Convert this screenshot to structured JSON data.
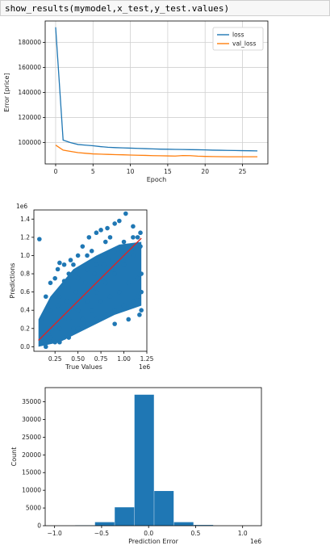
{
  "code": {
    "text": "show_results(mymodel,x_test,y_test.values)"
  },
  "chart_data": [
    {
      "type": "line",
      "xlabel": "Epoch",
      "ylabel": "Error [price]",
      "xlim": [
        -1.4,
        28.4
      ],
      "ylim": [
        83000,
        197000
      ],
      "xticks": [
        0,
        5,
        10,
        15,
        20,
        25
      ],
      "yticks": [
        100000,
        120000,
        140000,
        160000,
        180000
      ],
      "grid": true,
      "legend_position": "top-right",
      "x": [
        0,
        1,
        2,
        3,
        4,
        5,
        6,
        7,
        8,
        9,
        10,
        11,
        12,
        13,
        14,
        15,
        16,
        17,
        18,
        19,
        20,
        21,
        22,
        23,
        24,
        25,
        26,
        27
      ],
      "series": [
        {
          "name": "loss",
          "color": "#1f77b4",
          "values": [
            192000,
            102000,
            100000,
            98500,
            98000,
            97500,
            96800,
            96300,
            96000,
            95800,
            95600,
            95400,
            95200,
            95000,
            94800,
            94700,
            94600,
            94500,
            94400,
            94300,
            94200,
            94000,
            93900,
            93800,
            93700,
            93600,
            93500,
            93400
          ]
        },
        {
          "name": "val_loss",
          "color": "#ff7f0e",
          "values": [
            98000,
            94000,
            93000,
            92000,
            91500,
            91000,
            90800,
            90600,
            90400,
            90300,
            90100,
            89900,
            89800,
            89600,
            89500,
            89400,
            89300,
            89700,
            89600,
            89200,
            89000,
            88900,
            88800,
            88700,
            88700,
            88700,
            88700,
            88700
          ]
        }
      ]
    },
    {
      "type": "scatter",
      "xlabel": "True Values",
      "ylabel": "Predictions",
      "x_offset_label": "1e6",
      "y_offset_label": "1e6",
      "xlim": [
        0.02,
        1.25
      ],
      "ylim": [
        -0.05,
        1.5
      ],
      "xtick_labels": [
        "0.25",
        "0.50",
        "0.75",
        "1.00",
        "1.25"
      ],
      "xticks": [
        0.25,
        0.5,
        0.75,
        1.0,
        1.25
      ],
      "ytick_labels": [
        "0.0",
        "0.2",
        "0.4",
        "0.6",
        "0.8",
        "1.0",
        "1.2",
        "1.4"
      ],
      "yticks": [
        0.0,
        0.2,
        0.4,
        0.6,
        0.8,
        1.0,
        1.2,
        1.4
      ],
      "point_color": "#1f77b4",
      "line_color": "#d62728",
      "line": {
        "x": [
          0.07,
          1.19
        ],
        "y": [
          0.07,
          1.19
        ]
      },
      "points": [
        [
          0.1,
          0.05
        ],
        [
          0.2,
          0.1
        ],
        [
          0.3,
          0.2
        ],
        [
          0.4,
          0.3
        ],
        [
          0.5,
          0.4
        ],
        [
          0.6,
          0.5
        ],
        [
          0.7,
          0.6
        ],
        [
          0.8,
          0.7
        ],
        [
          0.9,
          0.8
        ],
        [
          1.0,
          0.9
        ],
        [
          1.1,
          1.0
        ],
        [
          1.18,
          1.1
        ],
        [
          0.1,
          0.3
        ],
        [
          0.2,
          0.4
        ],
        [
          0.3,
          0.55
        ],
        [
          0.4,
          0.65
        ],
        [
          0.5,
          0.75
        ],
        [
          0.6,
          0.85
        ],
        [
          0.7,
          0.9
        ],
        [
          0.8,
          1.0
        ],
        [
          0.9,
          1.05
        ],
        [
          1.0,
          1.15
        ],
        [
          1.1,
          1.2
        ],
        [
          1.18,
          1.25
        ],
        [
          0.15,
          0.0
        ],
        [
          0.25,
          0.05
        ],
        [
          0.35,
          0.1
        ],
        [
          0.45,
          0.2
        ],
        [
          0.55,
          0.3
        ],
        [
          0.65,
          0.4
        ],
        [
          0.75,
          0.5
        ],
        [
          0.85,
          0.55
        ],
        [
          0.95,
          0.6
        ],
        [
          1.05,
          0.7
        ],
        [
          1.15,
          0.75
        ],
        [
          0.08,
          1.18
        ],
        [
          0.3,
          0.92
        ],
        [
          0.35,
          0.9
        ],
        [
          0.42,
          0.95
        ],
        [
          0.5,
          1.0
        ],
        [
          0.55,
          1.1
        ],
        [
          0.62,
          1.2
        ],
        [
          0.7,
          1.25
        ],
        [
          0.75,
          1.28
        ],
        [
          0.82,
          1.3
        ],
        [
          0.9,
          1.35
        ],
        [
          0.95,
          1.38
        ],
        [
          1.02,
          1.46
        ],
        [
          1.1,
          1.32
        ],
        [
          0.15,
          0.55
        ],
        [
          0.2,
          0.7
        ],
        [
          0.25,
          0.75
        ],
        [
          0.28,
          0.85
        ],
        [
          0.35,
          0.72
        ],
        [
          0.4,
          0.8
        ],
        [
          0.45,
          0.9
        ],
        [
          0.6,
          1.0
        ],
        [
          0.65,
          1.05
        ],
        [
          0.8,
          1.15
        ],
        [
          0.85,
          1.2
        ],
        [
          1.15,
          1.2
        ],
        [
          1.19,
          0.6
        ],
        [
          1.19,
          0.4
        ],
        [
          1.19,
          0.8
        ],
        [
          0.5,
          0.2
        ],
        [
          0.6,
          0.25
        ],
        [
          0.7,
          0.3
        ],
        [
          0.8,
          0.35
        ],
        [
          0.9,
          0.4
        ],
        [
          1.0,
          0.45
        ],
        [
          1.1,
          0.5
        ],
        [
          1.15,
          0.55
        ],
        [
          0.3,
          0.05
        ],
        [
          0.4,
          0.1
        ],
        [
          0.9,
          0.25
        ],
        [
          1.05,
          0.3
        ],
        [
          1.17,
          0.35
        ],
        [
          0.22,
          0.25
        ],
        [
          0.33,
          0.35
        ],
        [
          0.44,
          0.45
        ],
        [
          0.55,
          0.55
        ],
        [
          0.66,
          0.65
        ],
        [
          0.77,
          0.75
        ],
        [
          0.88,
          0.85
        ],
        [
          0.99,
          0.95
        ],
        [
          1.1,
          1.08
        ],
        [
          0.18,
          0.15
        ],
        [
          0.28,
          0.45
        ],
        [
          0.38,
          0.5
        ],
        [
          0.48,
          0.6
        ],
        [
          0.58,
          0.7
        ],
        [
          0.68,
          0.8
        ],
        [
          0.78,
          0.9
        ],
        [
          0.88,
          0.95
        ],
        [
          0.98,
          1.05
        ],
        [
          1.08,
          1.1
        ]
      ]
    },
    {
      "type": "bar",
      "xlabel": "Prediction Error",
      "ylabel": "Count",
      "x_offset_label": "1e6",
      "xlim": [
        -1.1,
        1.2
      ],
      "ylim": [
        0,
        39000
      ],
      "xtick_labels": [
        "−1.0",
        "−0.5",
        "0.0",
        "0.5",
        "1.0"
      ],
      "xticks": [
        -1.0,
        -0.5,
        0.0,
        0.5,
        1.0
      ],
      "yticks": [
        0,
        5000,
        10000,
        15000,
        20000,
        25000,
        30000,
        35000
      ],
      "color": "#1f77b4",
      "bins": [
        {
          "left": -0.78,
          "right": -0.57,
          "value": 100
        },
        {
          "left": -0.57,
          "right": -0.36,
          "value": 1000
        },
        {
          "left": -0.36,
          "right": -0.15,
          "value": 5200
        },
        {
          "left": -0.15,
          "right": 0.06,
          "value": 37000
        },
        {
          "left": 0.06,
          "right": 0.27,
          "value": 9800
        },
        {
          "left": 0.27,
          "right": 0.48,
          "value": 1000
        },
        {
          "left": 0.48,
          "right": 0.69,
          "value": 200
        }
      ]
    }
  ]
}
